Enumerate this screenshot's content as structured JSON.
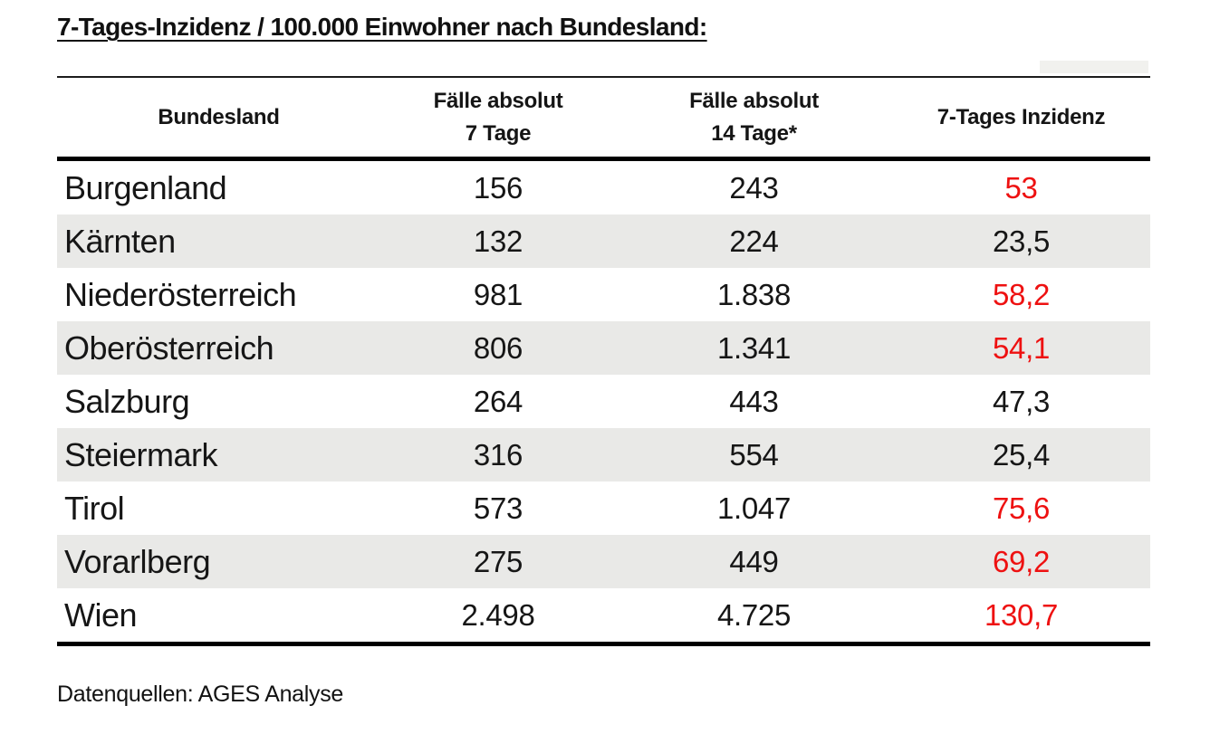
{
  "title": "7-Tages-Inzidenz / 100.000 Einwohner nach Bundesland:",
  "table": {
    "columns": [
      {
        "line1": "Bundesland",
        "line2": ""
      },
      {
        "line1": "Fälle absolut",
        "line2": "7 Tage"
      },
      {
        "line1": "Fälle absolut",
        "line2": "14 Tage*"
      },
      {
        "line1": "7-Tages Inzidenz",
        "line2": ""
      }
    ],
    "rows": [
      {
        "bundesland": "Burgenland",
        "faelle_7_tage": "156",
        "faelle_14_tage": "243",
        "inzidenz": "53",
        "highlight": true
      },
      {
        "bundesland": "Kärnten",
        "faelle_7_tage": "132",
        "faelle_14_tage": "224",
        "inzidenz": "23,5",
        "highlight": false
      },
      {
        "bundesland": "Niederösterreich",
        "faelle_7_tage": "981",
        "faelle_14_tage": "1.838",
        "inzidenz": "58,2",
        "highlight": true
      },
      {
        "bundesland": "Oberösterreich",
        "faelle_7_tage": "806",
        "faelle_14_tage": "1.341",
        "inzidenz": "54,1",
        "highlight": true
      },
      {
        "bundesland": "Salzburg",
        "faelle_7_tage": "264",
        "faelle_14_tage": "443",
        "inzidenz": "47,3",
        "highlight": false
      },
      {
        "bundesland": "Steiermark",
        "faelle_7_tage": "316",
        "faelle_14_tage": "554",
        "inzidenz": "25,4",
        "highlight": false
      },
      {
        "bundesland": "Tirol",
        "faelle_7_tage": "573",
        "faelle_14_tage": "1.047",
        "inzidenz": "75,6",
        "highlight": true
      },
      {
        "bundesland": "Vorarlberg",
        "faelle_7_tage": "275",
        "faelle_14_tage": "449",
        "inzidenz": "69,2",
        "highlight": true
      },
      {
        "bundesland": "Wien",
        "faelle_7_tage": "2.498",
        "faelle_14_tage": "4.725",
        "inzidenz": "130,7",
        "highlight": true
      }
    ]
  },
  "footer": "Datenquellen: AGES Analyse",
  "colors": {
    "highlight_red": "#ee1111",
    "text": "#1a1a1a",
    "stripe": "#e9e9e7"
  }
}
